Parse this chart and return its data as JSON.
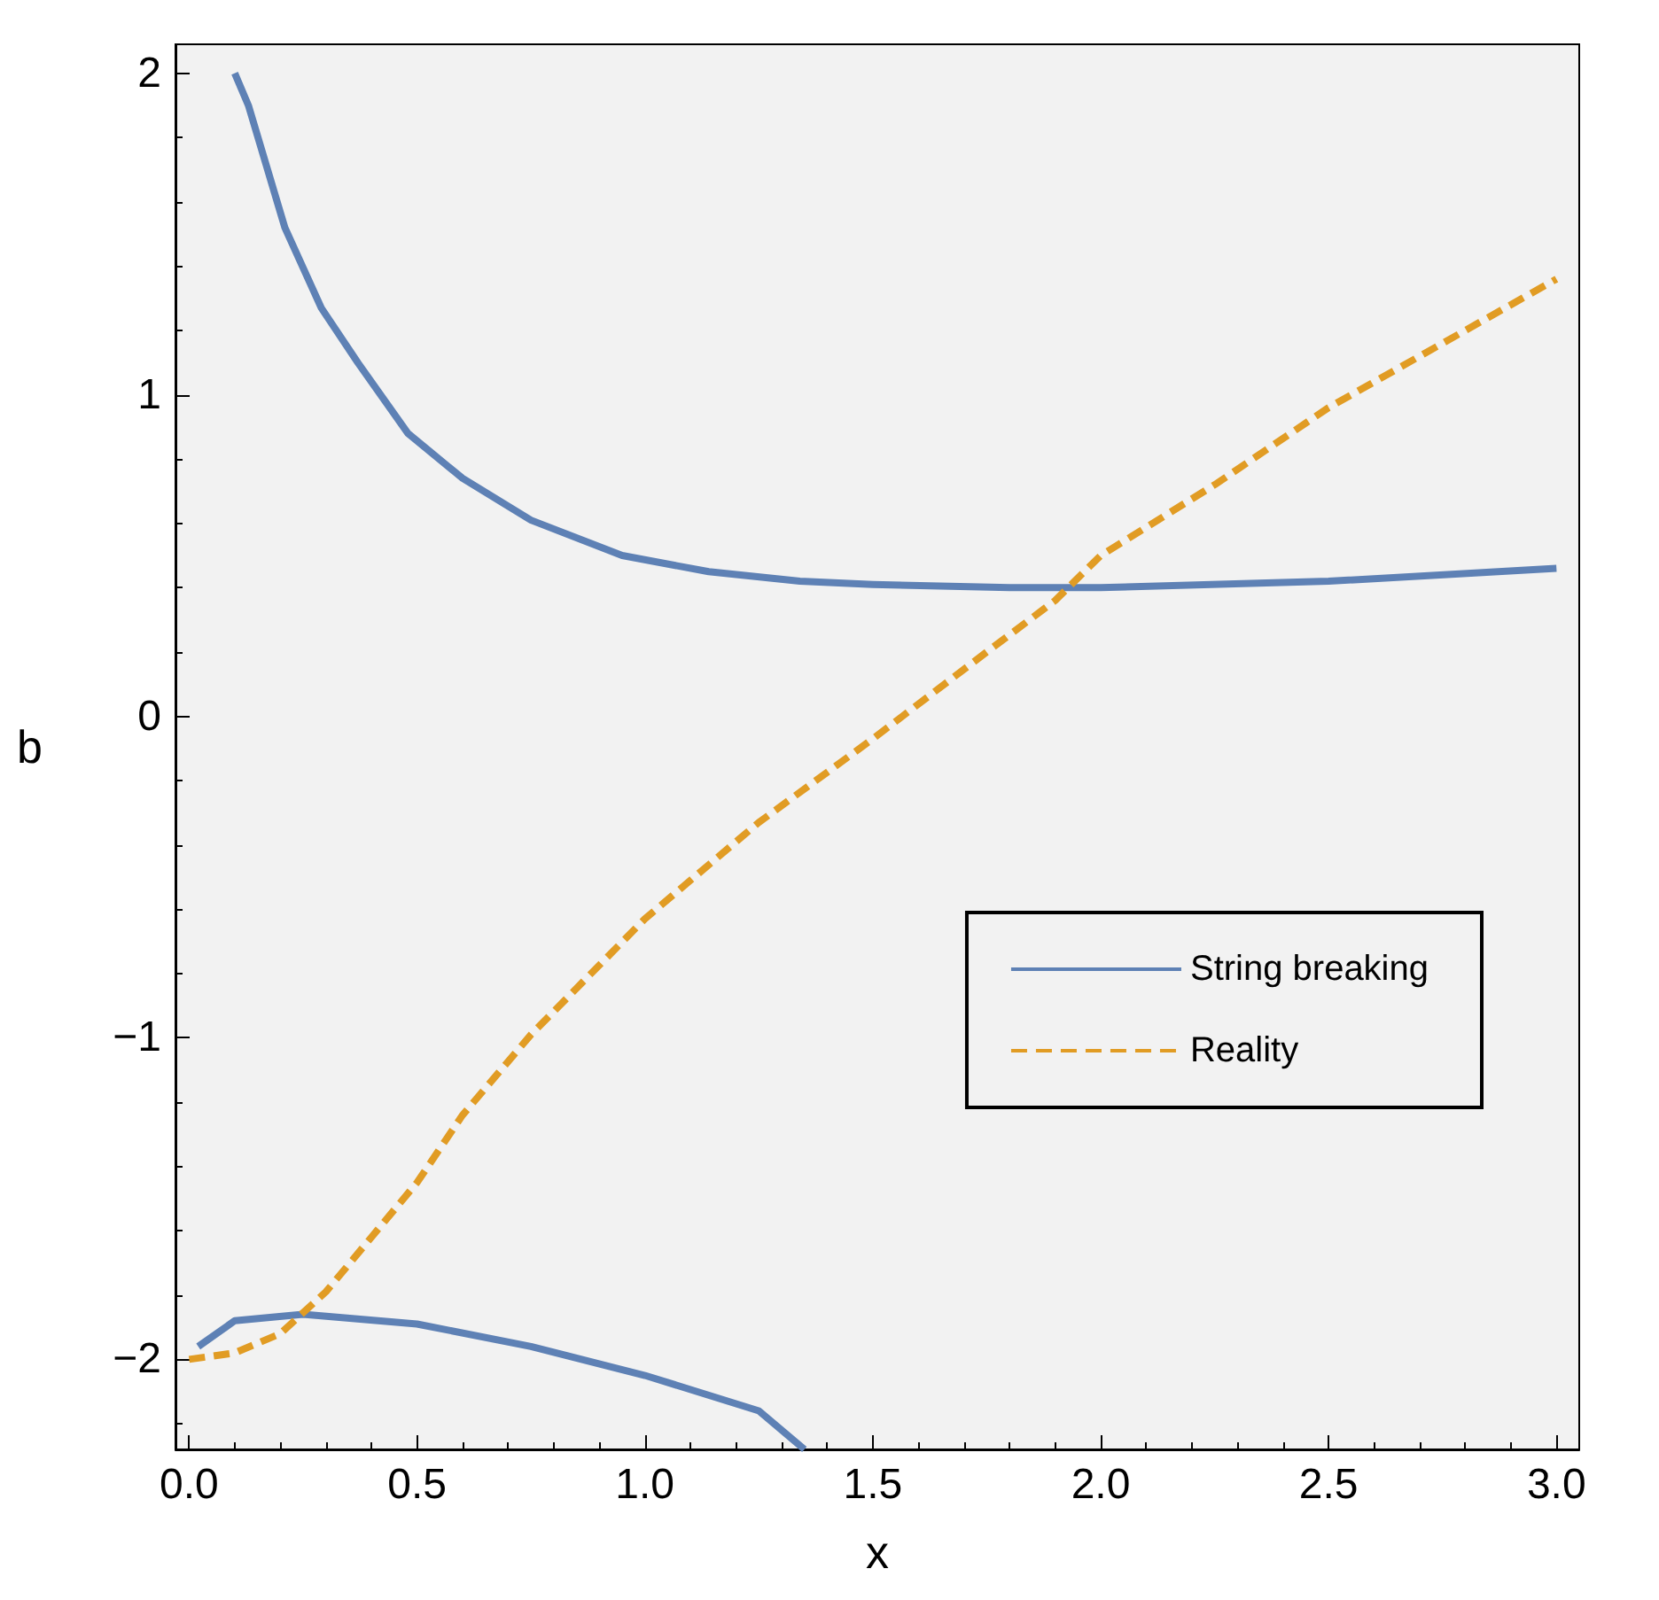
{
  "chart_data": {
    "type": "line",
    "xlabel": "x",
    "ylabel": "b",
    "xlim": [
      -0.03,
      3.05
    ],
    "ylim": [
      -2.28,
      2.09
    ],
    "xticks": [
      {
        "value": 0,
        "label": "0.0"
      },
      {
        "value": 0.5,
        "label": "0.5"
      },
      {
        "value": 1,
        "label": "1.0"
      },
      {
        "value": 1.5,
        "label": "1.5"
      },
      {
        "value": 2,
        "label": "2.0"
      },
      {
        "value": 2.5,
        "label": "2.5"
      },
      {
        "value": 3,
        "label": "3.0"
      }
    ],
    "yticks": [
      {
        "value": -2,
        "label": "−2"
      },
      {
        "value": -1,
        "label": "−1"
      },
      0,
      1,
      2
    ],
    "grid": false,
    "legend": "right",
    "marker": "none",
    "series": [
      {
        "name": "String breaking",
        "color": "#5e81b5",
        "line_style": "solid",
        "x": [
          0.02,
          0.1,
          0.25,
          0.5,
          0.75,
          1.0,
          1.25,
          1.35,
          null,
          0.1,
          0.13,
          0.21,
          0.29,
          0.37,
          0.48,
          0.6,
          0.75,
          0.95,
          1.14,
          1.34,
          1.5,
          1.8,
          2.0,
          2.5,
          3.0
        ],
        "values": [
          -1.96,
          -1.88,
          -1.86,
          -1.89,
          -1.96,
          -2.05,
          -2.16,
          -2.28,
          null,
          2.0,
          1.9,
          1.52,
          1.27,
          1.1,
          0.88,
          0.74,
          0.61,
          0.5,
          0.45,
          0.42,
          0.41,
          0.4,
          0.4,
          0.42,
          0.46
        ]
      },
      {
        "name": "Reality",
        "color": "#e19c24",
        "line_style": "dashed",
        "x": [
          0,
          0.1,
          0.2,
          0.3,
          0.4,
          0.5,
          0.6,
          0.75,
          1.0,
          1.25,
          1.5,
          1.75,
          1.9,
          2.0,
          2.25,
          2.5,
          2.75,
          3.0
        ],
        "values": [
          -2.0,
          -1.98,
          -1.92,
          -1.79,
          -1.62,
          -1.45,
          -1.24,
          -0.99,
          -0.63,
          -0.33,
          -0.07,
          0.2,
          0.36,
          0.5,
          0.72,
          0.96,
          1.16,
          1.36
        ]
      }
    ]
  }
}
